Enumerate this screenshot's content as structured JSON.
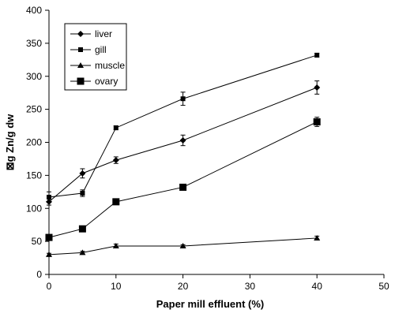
{
  "chart_data": {
    "type": "line",
    "xlabel": "Paper mill effluent (%)",
    "ylabel": "⊠g Zn/g dw",
    "xlim": [
      0,
      50
    ],
    "ylim": [
      0,
      400
    ],
    "xticks": [
      0,
      10,
      20,
      30,
      40,
      50
    ],
    "yticks": [
      0,
      50,
      100,
      150,
      200,
      250,
      300,
      350,
      400
    ],
    "grid": false,
    "legend_position": "top-left",
    "x": [
      0,
      5,
      10,
      20,
      40
    ],
    "series": [
      {
        "name": "liver",
        "marker": "diamond",
        "values": [
          110,
          153,
          173,
          203,
          283
        ],
        "errors": [
          5,
          7,
          5,
          8,
          10
        ]
      },
      {
        "name": "gill",
        "marker": "square-small",
        "values": [
          117,
          123,
          222,
          266,
          332
        ],
        "errors": [
          8,
          5,
          3,
          10,
          3
        ]
      },
      {
        "name": "muscle",
        "marker": "triangle",
        "values": [
          30,
          33,
          43,
          43,
          55
        ],
        "errors": [
          2,
          2,
          3,
          2,
          3
        ]
      },
      {
        "name": "ovary",
        "marker": "square-large",
        "values": [
          56,
          69,
          110,
          132,
          231
        ],
        "errors": [
          4,
          3,
          3,
          3,
          7
        ]
      }
    ],
    "colors": {
      "line": "#000000",
      "marker": "#000000",
      "axis": "#000000"
    }
  }
}
